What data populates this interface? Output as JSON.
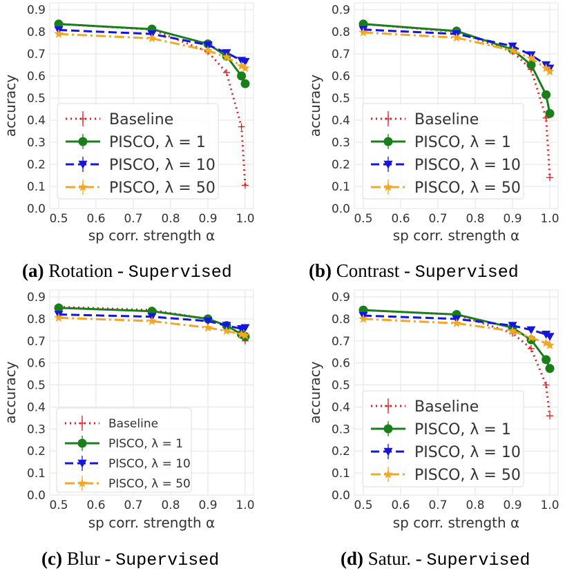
{
  "chart_data": [
    {
      "type": "line",
      "panel": "a",
      "caption": {
        "label": "(a)",
        "text": "Rotation - ",
        "mono": "Supervised"
      },
      "xlabel": "sp corr. strength α",
      "ylabel": "accuracy",
      "x": [
        0.5,
        0.75,
        0.9,
        0.95,
        0.99,
        1.0
      ],
      "xticks": [
        "0.5",
        "0.6",
        "0.7",
        "0.8",
        "0.9",
        "1.0"
      ],
      "yticks": [
        "0.0",
        "0.1",
        "0.2",
        "0.3",
        "0.4",
        "0.5",
        "0.6",
        "0.7",
        "0.8",
        "0.9"
      ],
      "ylim": [
        0,
        0.9
      ],
      "grid": true,
      "legend": "lower-left",
      "series": [
        {
          "name": "Baseline",
          "values": [
            0.835,
            0.81,
            0.71,
            0.615,
            0.37,
            0.105
          ]
        },
        {
          "name": "PISCO, λ = 1",
          "values": [
            0.835,
            0.812,
            0.745,
            0.69,
            0.6,
            0.565
          ]
        },
        {
          "name": "PISCO, λ = 10",
          "values": [
            0.808,
            0.79,
            0.74,
            0.705,
            0.67,
            0.665
          ]
        },
        {
          "name": "PISCO, λ = 50",
          "values": [
            0.79,
            0.77,
            0.715,
            0.685,
            0.645,
            0.635
          ]
        }
      ]
    },
    {
      "type": "line",
      "panel": "b",
      "caption": {
        "label": "(b)",
        "text": "Contrast - ",
        "mono": "Supervised"
      },
      "xlabel": "sp corr. strength α",
      "ylabel": "accuracy",
      "x": [
        0.5,
        0.75,
        0.9,
        0.95,
        0.99,
        1.0
      ],
      "xticks": [
        "0.5",
        "0.6",
        "0.7",
        "0.8",
        "0.9",
        "1.0"
      ],
      "yticks": [
        "0.0",
        "0.1",
        "0.2",
        "0.3",
        "0.4",
        "0.5",
        "0.6",
        "0.7",
        "0.8",
        "0.9"
      ],
      "ylim": [
        0,
        0.9
      ],
      "grid": true,
      "legend": "lower-left",
      "series": [
        {
          "name": "Baseline",
          "values": [
            0.835,
            0.8,
            0.71,
            0.63,
            0.41,
            0.14
          ]
        },
        {
          "name": "PISCO, λ = 1",
          "values": [
            0.835,
            0.803,
            0.72,
            0.65,
            0.515,
            0.43
          ]
        },
        {
          "name": "PISCO, λ = 10",
          "values": [
            0.81,
            0.79,
            0.735,
            0.695,
            0.65,
            0.635
          ]
        },
        {
          "name": "PISCO, λ = 50",
          "values": [
            0.797,
            0.773,
            0.715,
            0.68,
            0.635,
            0.62
          ]
        }
      ]
    },
    {
      "type": "line",
      "panel": "c",
      "caption": {
        "label": "(c)",
        "text": "Blur - ",
        "mono": "Supervised"
      },
      "xlabel": "sp corr. strength α",
      "ylabel": "accuracy",
      "x": [
        0.5,
        0.75,
        0.9,
        0.95,
        0.99,
        1.0
      ],
      "xticks": [
        "0.5",
        "0.6",
        "0.7",
        "0.8",
        "0.9",
        "1.0"
      ],
      "yticks": [
        "0.0",
        "0.1",
        "0.2",
        "0.3",
        "0.4",
        "0.5",
        "0.6",
        "0.7",
        "0.8",
        "0.9"
      ],
      "ylim": [
        0,
        0.9
      ],
      "grid": true,
      "legend": "lower-left",
      "series": [
        {
          "name": "Baseline",
          "values": [
            0.855,
            0.84,
            0.8,
            0.77,
            0.73,
            0.7
          ]
        },
        {
          "name": "PISCO, λ = 1",
          "values": [
            0.85,
            0.835,
            0.8,
            0.77,
            0.73,
            0.72
          ]
        },
        {
          "name": "PISCO, λ = 10",
          "values": [
            0.82,
            0.81,
            0.79,
            0.77,
            0.755,
            0.76
          ]
        },
        {
          "name": "PISCO, λ = 50",
          "values": [
            0.805,
            0.79,
            0.76,
            0.745,
            0.73,
            0.725
          ]
        }
      ]
    },
    {
      "type": "line",
      "panel": "d",
      "caption": {
        "label": "(d)",
        "text": "Satur. - ",
        "mono": "Supervised"
      },
      "xlabel": "sp corr. strength α",
      "ylabel": "accuracy",
      "x": [
        0.5,
        0.75,
        0.9,
        0.95,
        0.99,
        1.0
      ],
      "xticks": [
        "0.5",
        "0.6",
        "0.7",
        "0.8",
        "0.9",
        "1.0"
      ],
      "yticks": [
        "0.0",
        "0.1",
        "0.2",
        "0.3",
        "0.4",
        "0.5",
        "0.6",
        "0.7",
        "0.8",
        "0.9"
      ],
      "ylim": [
        0,
        0.9
      ],
      "grid": true,
      "legend": "lower-left",
      "series": [
        {
          "name": "Baseline",
          "values": [
            0.84,
            0.82,
            0.735,
            0.665,
            0.5,
            0.36
          ]
        },
        {
          "name": "PISCO, λ = 1",
          "values": [
            0.84,
            0.82,
            0.76,
            0.705,
            0.615,
            0.575
          ]
        },
        {
          "name": "PISCO, λ = 10",
          "values": [
            0.815,
            0.8,
            0.77,
            0.75,
            0.73,
            0.72
          ]
        },
        {
          "name": "PISCO, λ = 50",
          "values": [
            0.8,
            0.78,
            0.745,
            0.715,
            0.69,
            0.68
          ]
        }
      ]
    }
  ],
  "series_colors": [
    "#e41a1c",
    "#1a7f1a",
    "#1515e0",
    "#f5a623"
  ]
}
